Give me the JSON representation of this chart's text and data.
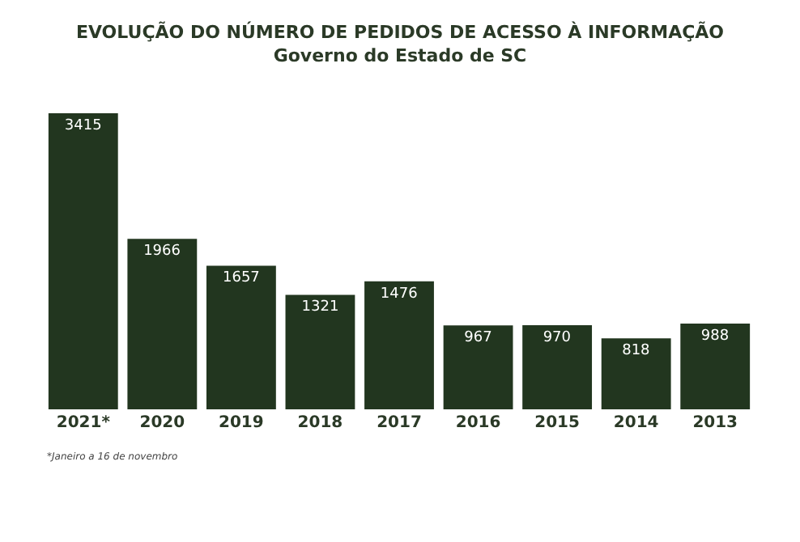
{
  "chart_data": {
    "type": "bar",
    "title": "EVOLUÇÃO DO NÚMERO DE PEDIDOS DE ACESSO À INFORMAÇÃO",
    "subtitle": "Governo do Estado de SC",
    "categories": [
      "2021*",
      "2020",
      "2019",
      "2018",
      "2017",
      "2016",
      "2015",
      "2014",
      "2013"
    ],
    "values": [
      3415,
      1966,
      1657,
      1321,
      1476,
      967,
      970,
      818,
      988
    ],
    "color": "#22361f",
    "data_labels": true,
    "legend": false,
    "tick_labels": "x",
    "annotations": [
      "*Janeiro a 16 de novembro"
    ]
  }
}
